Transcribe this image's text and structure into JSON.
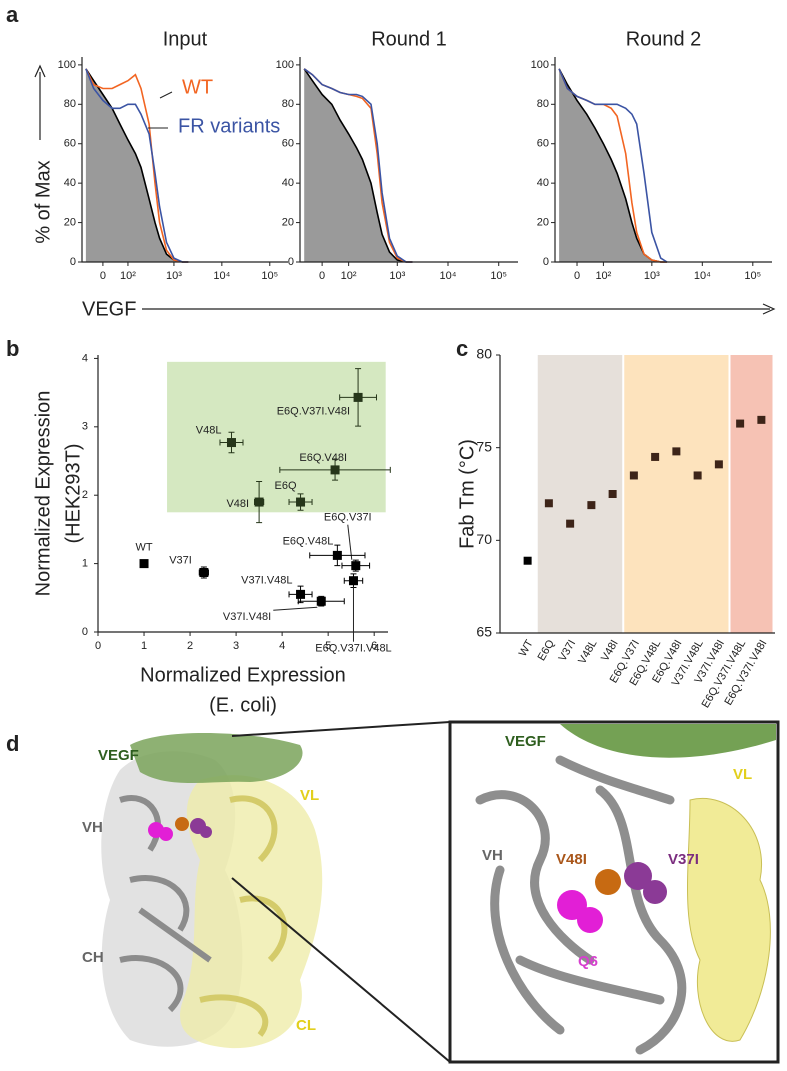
{
  "panel_labels": [
    "a",
    "b",
    "c",
    "d"
  ],
  "chart_data": [
    {
      "type": "line",
      "title": "Input",
      "y_label": "% of Max",
      "x_label": "VEGF",
      "xscale": "biexponential",
      "x": [
        -60,
        -30,
        0,
        30,
        60,
        100,
        150,
        200,
        300,
        400,
        500,
        700,
        1000,
        1500,
        2000
      ],
      "series": [
        {
          "color": "#000000",
          "fill": "#9a9a9a",
          "values": [
            98,
            92,
            85,
            78,
            70,
            62,
            55,
            48,
            32,
            20,
            12,
            4,
            1,
            0,
            0
          ]
        },
        {
          "name": "WT",
          "color": "#f26522",
          "values": [
            98,
            90,
            88,
            88,
            90,
            92,
            95,
            88,
            70,
            40,
            20,
            6,
            1,
            0,
            0
          ]
        },
        {
          "name": "FR variants",
          "color": "#3b54a4",
          "values": [
            98,
            88,
            82,
            78,
            78,
            80,
            80,
            75,
            65,
            45,
            28,
            10,
            2,
            0,
            0
          ]
        }
      ],
      "xlim": [
        -78,
        240000
      ],
      "ylim": [
        0,
        104
      ],
      "xticks": [
        0,
        {
          "value": 100,
          "label": "10²"
        },
        {
          "value": 1000,
          "label": "10³"
        },
        {
          "value": 10000,
          "label": "10⁴"
        },
        {
          "value": 100000,
          "label": "10⁵"
        }
      ],
      "yticks": [
        0,
        20,
        40,
        60,
        80,
        100
      ]
    },
    {
      "type": "line",
      "title": "Round 1",
      "xscale": "biexponential",
      "x": [
        -60,
        -30,
        0,
        30,
        60,
        100,
        150,
        200,
        300,
        400,
        500,
        700,
        1000,
        1500,
        2000
      ],
      "series": [
        {
          "color": "#000000",
          "fill": "#9a9a9a",
          "values": [
            98,
            92,
            85,
            80,
            72,
            65,
            58,
            52,
            40,
            25,
            14,
            5,
            1,
            0,
            0
          ]
        },
        {
          "color": "#f26522",
          "values": [
            98,
            95,
            90,
            88,
            86,
            85,
            84,
            83,
            78,
            55,
            30,
            10,
            2,
            0,
            0
          ]
        },
        {
          "color": "#3b54a4",
          "values": [
            98,
            95,
            90,
            88,
            86,
            85,
            85,
            84,
            80,
            60,
            35,
            12,
            3,
            0,
            0
          ]
        }
      ],
      "xlim": [
        -78,
        240000
      ],
      "ylim": [
        0,
        104
      ],
      "xticks": [
        0,
        {
          "value": 100,
          "label": "10²"
        },
        {
          "value": 1000,
          "label": "10³"
        },
        {
          "value": 10000,
          "label": "10⁴"
        },
        {
          "value": 100000,
          "label": "10⁵"
        }
      ],
      "yticks": [
        0,
        20,
        40,
        60,
        80,
        100
      ]
    },
    {
      "type": "line",
      "title": "Round 2",
      "xscale": "biexponential",
      "x": [
        -60,
        -30,
        0,
        30,
        60,
        100,
        150,
        200,
        300,
        400,
        500,
        700,
        1000,
        1500,
        2000
      ],
      "series": [
        {
          "color": "#000000",
          "fill": "#9a9a9a",
          "values": [
            98,
            90,
            82,
            75,
            68,
            60,
            52,
            45,
            32,
            20,
            12,
            4,
            1,
            0,
            0
          ]
        },
        {
          "color": "#f26522",
          "values": [
            98,
            88,
            84,
            82,
            80,
            80,
            78,
            74,
            55,
            30,
            15,
            4,
            1,
            0,
            0
          ]
        },
        {
          "color": "#3b54a4",
          "values": [
            98,
            88,
            84,
            82,
            80,
            80,
            80,
            80,
            78,
            75,
            70,
            45,
            15,
            2,
            0
          ]
        }
      ],
      "xlim": [
        -78,
        240000
      ],
      "ylim": [
        0,
        104
      ],
      "xticks": [
        0,
        {
          "value": 100,
          "label": "10²"
        },
        {
          "value": 1000,
          "label": "10³"
        },
        {
          "value": 10000,
          "label": "10⁴"
        },
        {
          "value": 100000,
          "label": "10⁵"
        }
      ],
      "yticks": [
        0,
        20,
        40,
        60,
        80,
        100
      ]
    },
    {
      "type": "scatter",
      "y_label": [
        "Normalized Expression",
        "(HEK293T)"
      ],
      "x_label": [
        "Normalized Expression",
        "(E. coli)"
      ],
      "highlight": {
        "x": [
          1.5,
          6.25
        ],
        "y": [
          1.75,
          3.95
        ],
        "color": "#d5e8c1"
      },
      "points": [
        {
          "label": "WT",
          "x": 1.0,
          "y": 1.0,
          "xerr": 0,
          "yerr": 0,
          "color": "#000000"
        },
        {
          "label": "V37I",
          "x": 2.3,
          "y": 0.87,
          "xerr": 0.1,
          "yerr": 0.08,
          "color": "#000000"
        },
        {
          "label": "V48L",
          "x": 2.9,
          "y": 2.77,
          "xerr": 0.25,
          "yerr": 0.15,
          "color": "#26361a"
        },
        {
          "label": "V48I",
          "x": 3.5,
          "y": 1.9,
          "xerr": 0.1,
          "yerr": 0.3,
          "color": "#26361a"
        },
        {
          "label": "E6Q",
          "x": 4.4,
          "y": 1.9,
          "xerr": 0.25,
          "yerr": 0.12,
          "color": "#26361a"
        },
        {
          "label": "E6Q.V48I",
          "x": 5.15,
          "y": 2.37,
          "xerr": 1.2,
          "yerr": 0.15,
          "color": "#26361a"
        },
        {
          "label": "E6Q.V37I.V48I",
          "x": 5.65,
          "y": 3.43,
          "xerr": 0.4,
          "yerr": 0.42,
          "color": "#26361a"
        },
        {
          "label": "E6Q.V37I",
          "x": 5.6,
          "y": 0.97,
          "xerr": 0.3,
          "yerr": 0.08,
          "color": "#000000"
        },
        {
          "label": "E6Q.V48L",
          "x": 5.2,
          "y": 1.12,
          "xerr": 0.6,
          "yerr": 0.15,
          "color": "#000000"
        },
        {
          "label": "V37I.V48L",
          "x": 4.4,
          "y": 0.55,
          "xerr": 0.25,
          "yerr": 0.12,
          "color": "#000000"
        },
        {
          "label": "V37I.V48I",
          "x": 4.85,
          "y": 0.45,
          "xerr": 0.5,
          "yerr": 0.07,
          "color": "#000000"
        },
        {
          "label": "E6Q.V37I.V48L",
          "x": 5.55,
          "y": 0.75,
          "xerr": 0.2,
          "yerr": 0.1,
          "color": "#000000"
        }
      ],
      "xlim": [
        0,
        6.3
      ],
      "ylim": [
        0,
        4.05
      ],
      "xticks": [
        0,
        1,
        2,
        3,
        4,
        5,
        6
      ],
      "yticks": [
        0,
        1,
        2,
        3,
        4
      ]
    },
    {
      "type": "dot",
      "y_label": "Fab Tm (°C)",
      "categories": [
        "WT",
        "E6Q",
        "V37I",
        "V48L",
        "V48I",
        "E6Q.V37I",
        "E6Q.V48L",
        "E6Q.V48I",
        "V37I.V48L",
        "V37I.V48I",
        "E6Q.V37I.V48L",
        "E6Q.V37I.V48I"
      ],
      "values": [
        68.9,
        72.0,
        70.9,
        71.9,
        72.5,
        73.5,
        74.5,
        74.8,
        73.5,
        74.1,
        76.3,
        76.5
      ],
      "point_colors": [
        "#000000",
        "#3d2418",
        "#3d2418",
        "#3d2418",
        "#3d2418",
        "#3d2418",
        "#3d2418",
        "#3d2418",
        "#3d2418",
        "#3d2418",
        "#3d2418",
        "#3d2418"
      ],
      "band_colors": [
        null,
        "#e6e0da",
        "#e6e0da",
        "#e6e0da",
        "#e6e0da",
        "#fde3bd",
        "#fde3bd",
        "#fde3bd",
        "#fde3bd",
        "#fde3bd",
        "#f6c2b4",
        "#f6c2b4"
      ],
      "ylim": [
        65,
        80
      ],
      "yticks": [
        65,
        70,
        75,
        80
      ]
    }
  ],
  "structure": {
    "labels": [
      "VEGF",
      "VH",
      "VL",
      "CH",
      "CL"
    ],
    "inset_labels": [
      "VEGF",
      "VL",
      "VH",
      "V48I",
      "V37I",
      "Q6"
    ]
  }
}
